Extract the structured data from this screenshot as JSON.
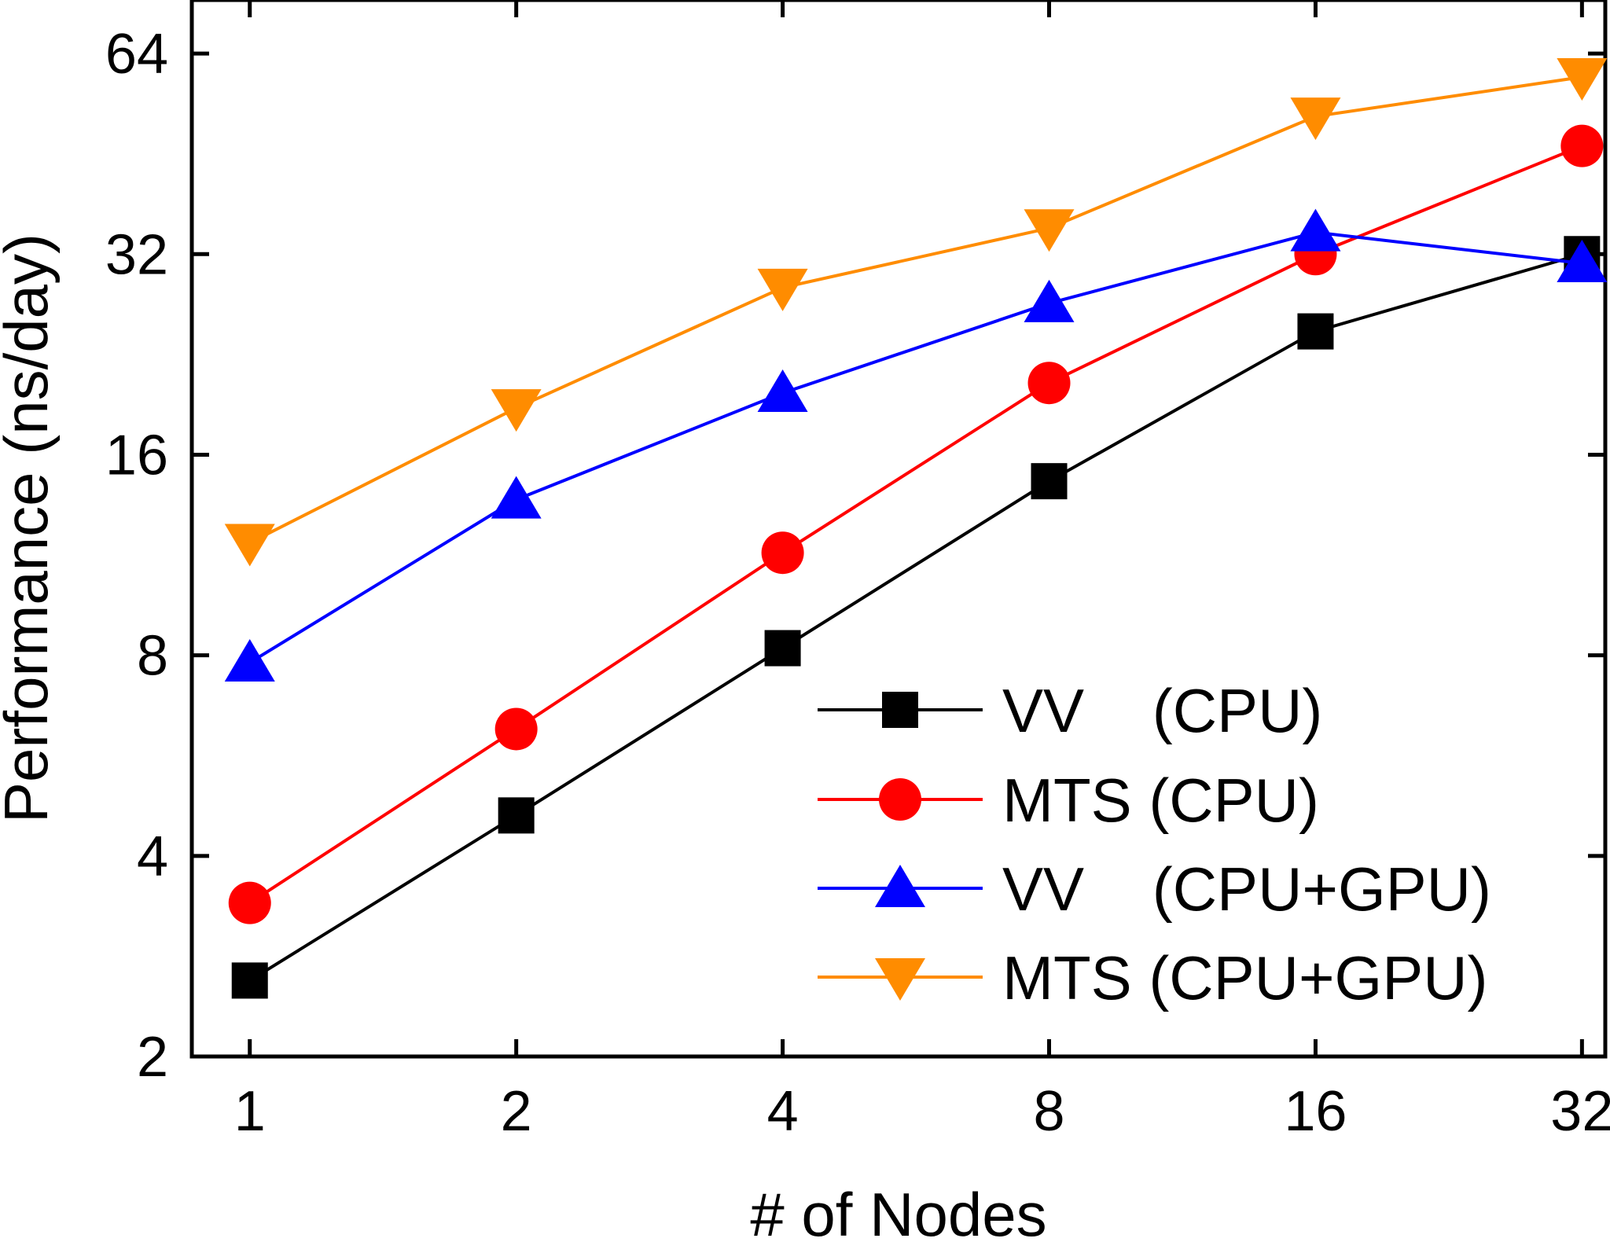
{
  "chart_data": {
    "type": "line",
    "title": "",
    "xlabel": "# of Nodes",
    "ylabel": "Performance (ns/day)",
    "x_scale": "log2",
    "y_scale": "log2",
    "x": [
      1,
      2,
      4,
      8,
      16,
      32
    ],
    "x_tick_labels": [
      "1",
      "2",
      "4",
      "8",
      "16",
      "32"
    ],
    "y_ticks": [
      2,
      4,
      8,
      16,
      32,
      64
    ],
    "y_tick_labels": [
      "2",
      "4",
      "8",
      "16",
      "32",
      "64"
    ],
    "xlim": [
      0.86,
      34
    ],
    "ylim": [
      2,
      77
    ],
    "grid": false,
    "legend_position": "bottom-right",
    "series": [
      {
        "name": "VV    (CPU)",
        "color": "#000000",
        "marker": "square",
        "values": [
          2.6,
          4.6,
          8.2,
          14.6,
          24.5,
          32.0
        ]
      },
      {
        "name": "MTS (CPU)",
        "color": "#ff0000",
        "marker": "circle",
        "values": [
          3.4,
          6.2,
          11.4,
          20.5,
          32.0,
          46.5
        ]
      },
      {
        "name": "VV    (CPU+GPU)",
        "color": "#0000ff",
        "marker": "triangle-up",
        "values": [
          7.8,
          13.7,
          19.8,
          27.0,
          34.5,
          31.0
        ]
      },
      {
        "name": "MTS (CPU+GPU)",
        "color": "#ff8c00",
        "marker": "triangle-down",
        "values": [
          11.8,
          18.8,
          28.5,
          35.0,
          51.5,
          59.0
        ]
      }
    ]
  }
}
